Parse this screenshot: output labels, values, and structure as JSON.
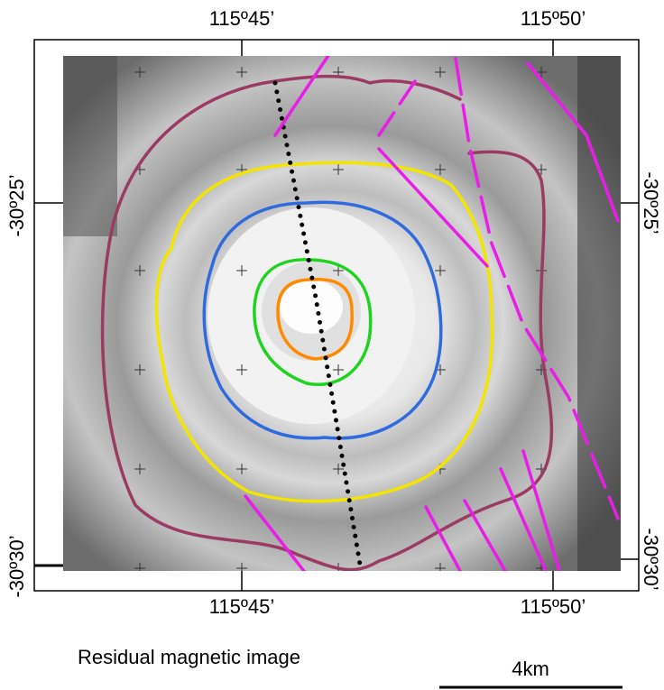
{
  "map": {
    "top_labels": [
      "115º45’",
      "115º50’"
    ],
    "bottom_labels": [
      "115º45’",
      "115º50’"
    ],
    "left_labels": [
      "-30º25’",
      "-30º30’"
    ],
    "right_labels": [
      "-30º25’",
      "-30º30’"
    ],
    "caption": "Residual magnetic image",
    "scale_label": "4km"
  }
}
